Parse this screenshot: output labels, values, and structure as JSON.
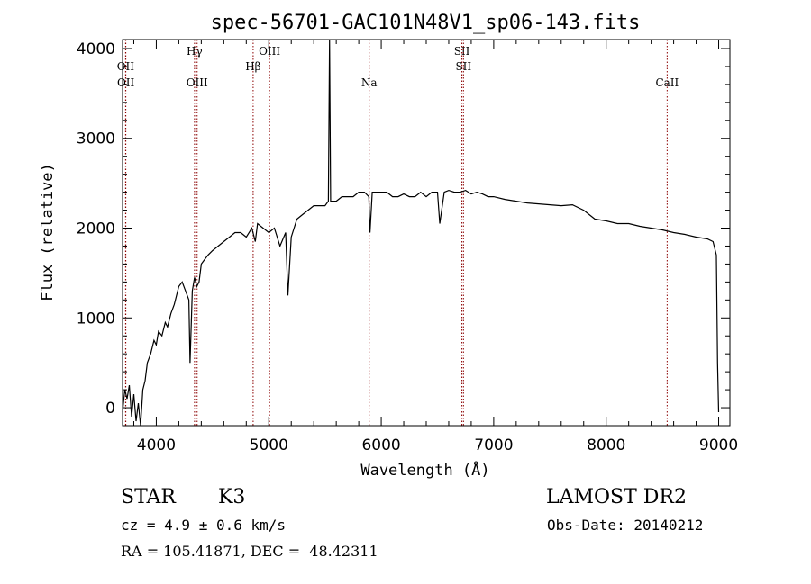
{
  "chart_data": {
    "type": "line",
    "title": "spec-56701-GAC101N48V1_sp06-143.fits",
    "xlabel": "Wavelength (Å)",
    "ylabel": "Flux (relative)",
    "xlim": [
      3700,
      9100
    ],
    "ylim": [
      -200,
      4100
    ],
    "x_ticks": [
      4000,
      5000,
      6000,
      7000,
      8000,
      9000
    ],
    "y_ticks": [
      0,
      1000,
      2000,
      3000,
      4000
    ],
    "grid": false,
    "series": [
      {
        "x": [
          3700,
          3720,
          3740,
          3760,
          3780,
          3800,
          3820,
          3840,
          3860,
          3880,
          3900,
          3920,
          3950,
          3980,
          4000,
          4020,
          4050,
          4080,
          4100,
          4130,
          4160,
          4200,
          4230,
          4260,
          4290,
          4300,
          4320,
          4340,
          4360,
          4380,
          4400,
          4430,
          4460,
          4500,
          4550,
          4600,
          4650,
          4700,
          4750,
          4800,
          4850,
          4880,
          4900,
          4950,
          5000,
          5050,
          5100,
          5150,
          5170,
          5200,
          5250,
          5300,
          5350,
          5400,
          5450,
          5500,
          5530,
          5540,
          5550,
          5600,
          5650,
          5700,
          5750,
          5800,
          5850,
          5890,
          5900,
          5920,
          5950,
          6000,
          6050,
          6100,
          6150,
          6200,
          6250,
          6300,
          6350,
          6400,
          6450,
          6500,
          6520,
          6560,
          6600,
          6650,
          6700,
          6750,
          6800,
          6850,
          6900,
          6950,
          7000,
          7100,
          7200,
          7300,
          7400,
          7500,
          7600,
          7700,
          7800,
          7900,
          8000,
          8100,
          8200,
          8300,
          8400,
          8500,
          8600,
          8700,
          8800,
          8900,
          8950,
          8980,
          8990,
          9000
        ],
        "y": [
          -50,
          200,
          100,
          250,
          -100,
          150,
          -150,
          50,
          -200,
          200,
          300,
          500,
          600,
          750,
          700,
          850,
          800,
          950,
          900,
          1050,
          1150,
          1350,
          1400,
          1300,
          1200,
          500,
          1300,
          1450,
          1350,
          1400,
          1600,
          1650,
          1700,
          1750,
          1800,
          1850,
          1900,
          1950,
          1950,
          1900,
          2000,
          1850,
          2050,
          2000,
          1950,
          2000,
          1800,
          1950,
          1250,
          1900,
          2100,
          2150,
          2200,
          2250,
          2250,
          2250,
          2300,
          4100,
          2300,
          2300,
          2350,
          2350,
          2350,
          2400,
          2400,
          2350,
          1950,
          2400,
          2400,
          2400,
          2400,
          2350,
          2350,
          2380,
          2350,
          2350,
          2400,
          2350,
          2400,
          2400,
          2050,
          2400,
          2420,
          2400,
          2400,
          2420,
          2380,
          2400,
          2380,
          2350,
          2350,
          2320,
          2300,
          2280,
          2270,
          2260,
          2250,
          2260,
          2200,
          2100,
          2080,
          2050,
          2050,
          2020,
          2000,
          1980,
          1950,
          1930,
          1900,
          1880,
          1850,
          1700,
          500,
          -50
        ]
      }
    ],
    "emission_lines": [
      {
        "x": 3727,
        "label": "OII",
        "row": "top"
      },
      {
        "x": 3729,
        "label": "OII",
        "row": "bottom"
      },
      {
        "x": 4340,
        "label": "Hγ",
        "row": "upper"
      },
      {
        "x": 4363,
        "label": "OIII",
        "row": "bottom"
      },
      {
        "x": 4861,
        "label": "Hβ",
        "row": "top"
      },
      {
        "x": 5007,
        "label": "OIII",
        "row": "upper"
      },
      {
        "x": 5893,
        "label": "Na",
        "row": "bottom"
      },
      {
        "x": 6717,
        "label": "SII",
        "row": "upper"
      },
      {
        "x": 6731,
        "label": "SII",
        "row": "top"
      },
      {
        "x": 8542,
        "label": "CaII",
        "row": "bottom"
      }
    ]
  },
  "info": {
    "class": "STAR",
    "subclass": "K3",
    "survey": "LAMOST DR2",
    "cz": "cz = 4.9 ± 0.6 km/s",
    "obs_date": "Obs-Date: 20140212",
    "coords": "RA = 105.41871, DEC =  48.42311"
  }
}
